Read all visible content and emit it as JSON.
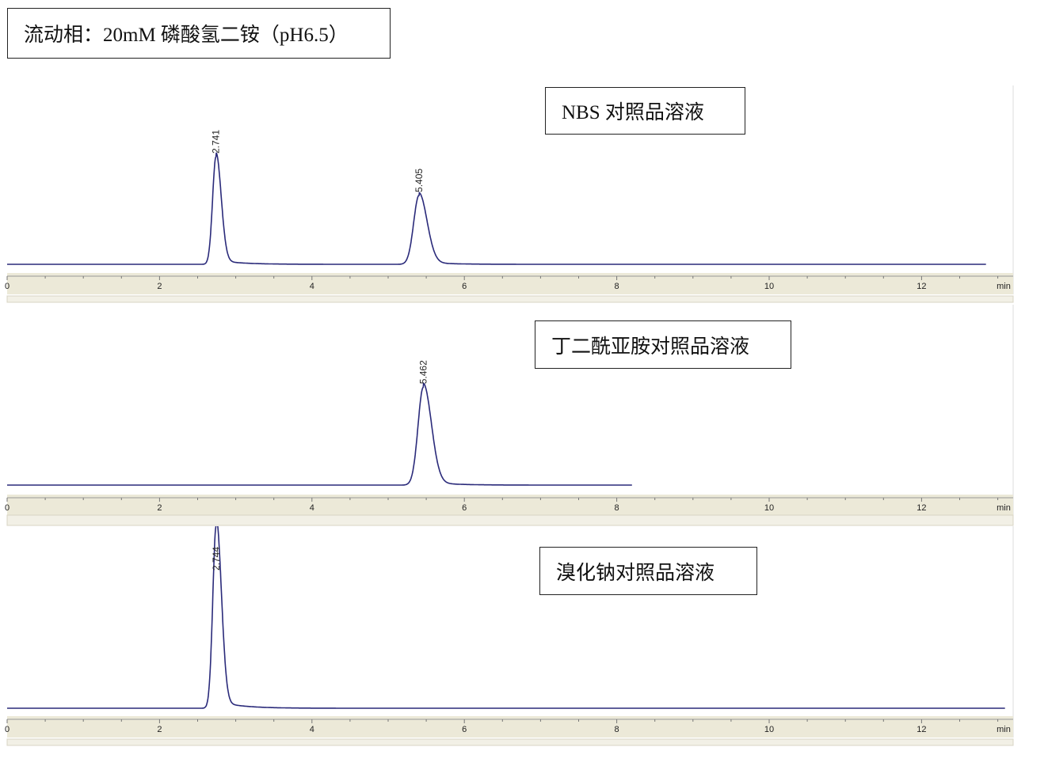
{
  "title": "流动相：20mM 磷酸氢二铵（pH6.5）",
  "colors": {
    "trace": "#2a2a7a",
    "axis_band": "#ece9d8",
    "separator": "#d8d5c4"
  },
  "chart_data": [
    {
      "type": "line",
      "label": "NBS 对照品溶液",
      "x_unit": "min",
      "xlim": [
        0,
        13
      ],
      "x_ticks": [
        0,
        2,
        4,
        6,
        8,
        10,
        12
      ],
      "trace_end": 12.85,
      "peaks": [
        {
          "rt": 2.741,
          "label": "2.741",
          "relative_height": 1.0
        },
        {
          "rt": 5.405,
          "label": "5.405",
          "relative_height": 0.64
        }
      ]
    },
    {
      "type": "line",
      "label": "丁二酰亚胺对照品溶液",
      "x_unit": "min",
      "xlim": [
        0,
        13
      ],
      "x_ticks": [
        0,
        2,
        4,
        6,
        8,
        10,
        12
      ],
      "trace_end": 8.2,
      "peaks": [
        {
          "rt": 5.462,
          "label": "5.462",
          "relative_height": 0.91
        }
      ]
    },
    {
      "type": "line",
      "label": "溴化钠对照品溶液",
      "x_unit": "min",
      "xlim": [
        0,
        13
      ],
      "x_ticks": [
        0,
        2,
        4,
        6,
        8,
        10,
        12
      ],
      "trace_end": 13.1,
      "peaks": [
        {
          "rt": 2.744,
          "label": "2.744",
          "relative_height": 1.7
        }
      ]
    }
  ]
}
